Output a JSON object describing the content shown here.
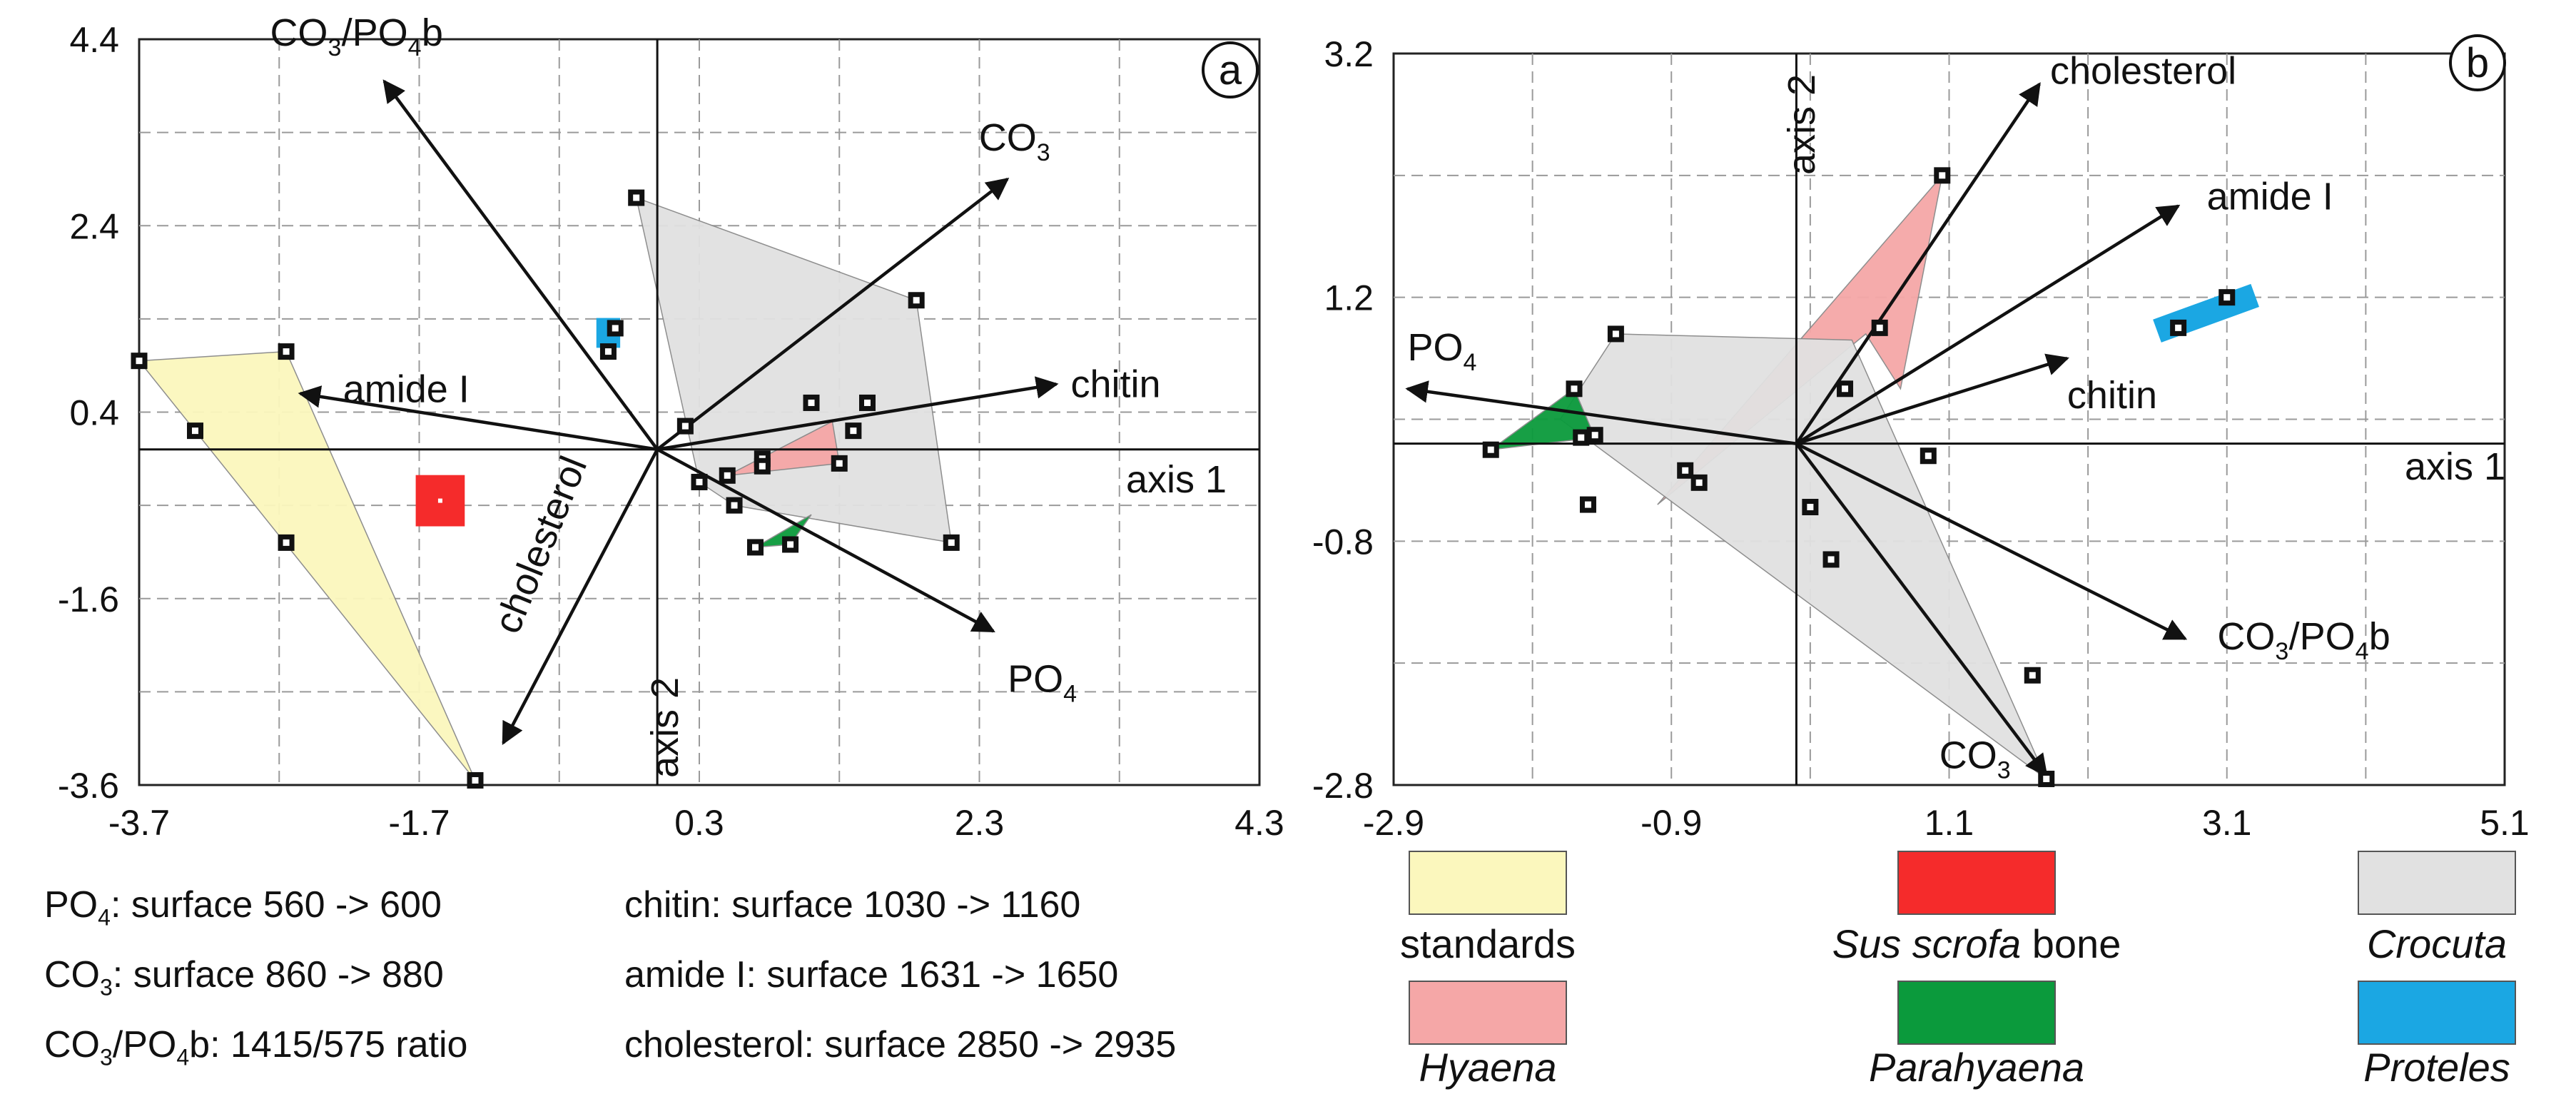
{
  "chart_data": [
    {
      "panel": "a",
      "type": "scatter",
      "axes": {
        "x_label": "axis 1",
        "y_label": "axis 2",
        "xlim": [
          -3.7,
          4.3
        ],
        "ylim": [
          -3.6,
          4.4
        ],
        "xticks": [
          -3.7,
          -1.7,
          0.3,
          2.3,
          4.3
        ],
        "yticks": [
          4.4,
          2.4,
          0.4,
          -1.6,
          -3.6
        ],
        "grid": true
      },
      "polygons": [
        {
          "group": "standards",
          "points": [
            [
              -3.7,
              0.95
            ],
            [
              -2.65,
              1.05
            ],
            [
              -1.3,
              -3.55
            ],
            [
              -3.3,
              0.2
            ]
          ]
        },
        {
          "group": "Crocuta",
          "points": [
            [
              -0.15,
              2.7
            ],
            [
              1.85,
              1.6
            ],
            [
              2.1,
              -1.0
            ],
            [
              0.55,
              -0.6
            ],
            [
              0.3,
              -0.35
            ]
          ]
        },
        {
          "group": "Hyaena",
          "points": [
            [
              0.5,
              -0.28
            ],
            [
              1.25,
              0.3
            ],
            [
              1.3,
              -0.15
            ]
          ]
        },
        {
          "group": "Parahyaena",
          "points": [
            [
              0.7,
              -1.05
            ],
            [
              1.1,
              -0.7
            ],
            [
              0.95,
              -1.02
            ]
          ]
        }
      ],
      "rects": [
        {
          "group": "Sus scrofa bone",
          "center": [
            -1.55,
            -0.55
          ],
          "w": 0.35,
          "h": 0.55
        },
        {
          "group": "Proteles",
          "center": [
            -0.35,
            1.25
          ],
          "w": 0.17,
          "h": 0.32
        }
      ],
      "points": [
        [
          -3.7,
          0.95
        ],
        [
          -2.65,
          1.05
        ],
        [
          -1.3,
          -3.55
        ],
        [
          -3.3,
          0.2
        ],
        [
          -2.65,
          -1.0
        ],
        [
          -0.15,
          2.7
        ],
        [
          1.85,
          1.6
        ],
        [
          2.1,
          -1.0
        ],
        [
          0.55,
          -0.6
        ],
        [
          0.3,
          -0.35
        ],
        [
          0.2,
          0.25
        ],
        [
          0.5,
          -0.28
        ],
        [
          0.75,
          -0.1
        ],
        [
          0.75,
          -0.18
        ],
        [
          1.1,
          0.5
        ],
        [
          1.5,
          0.5
        ],
        [
          1.4,
          0.2
        ],
        [
          1.3,
          -0.15
        ],
        [
          0.7,
          -1.05
        ],
        [
          0.95,
          -1.02
        ],
        [
          -0.35,
          1.05
        ],
        [
          -0.3,
          1.3
        ]
      ],
      "vectors": [
        {
          "name": "CO3/PO4b",
          "end": [
            -1.95,
            3.95
          ]
        },
        {
          "name": "CO3",
          "end": [
            2.5,
            2.9
          ]
        },
        {
          "name": "chitin",
          "end": [
            2.85,
            0.7
          ]
        },
        {
          "name": "amide I",
          "end": [
            -2.55,
            0.6
          ]
        },
        {
          "name": "PO4",
          "end": [
            2.4,
            -1.95
          ]
        },
        {
          "name": "cholesterol",
          "end": [
            -1.1,
            -3.15
          ]
        }
      ]
    },
    {
      "panel": "b",
      "type": "scatter",
      "axes": {
        "x_label": "axis 1",
        "y_label": "axis 2",
        "xlim": [
          -2.9,
          5.1
        ],
        "ylim": [
          -2.8,
          3.2
        ],
        "xticks": [
          -2.9,
          -0.9,
          1.1,
          3.1,
          5.1
        ],
        "yticks": [
          3.2,
          1.2,
          -0.8,
          -2.8
        ],
        "grid": true
      },
      "polygons": [
        {
          "group": "Hyaena",
          "points": [
            [
              -1.0,
              -0.5
            ],
            [
              1.05,
              2.2
            ],
            [
              0.75,
              0.45
            ],
            [
              0.5,
              0.9
            ]
          ]
        },
        {
          "group": "Crocuta",
          "points": [
            [
              -1.3,
              0.9
            ],
            [
              0.4,
              0.85
            ],
            [
              1.8,
              -2.75
            ],
            [
              -1.7,
              0.2
            ]
          ]
        },
        {
          "group": "Parahyaena",
          "points": [
            [
              -2.2,
              -0.05
            ],
            [
              -1.6,
              0.45
            ],
            [
              -1.45,
              0.05
            ]
          ]
        }
      ],
      "rects": [
        {
          "group": "Proteles",
          "center": [
            2.95,
            1.07
          ],
          "w": 0.75,
          "h": 0.2,
          "angle": -20
        }
      ],
      "points": [
        [
          -2.2,
          -0.05
        ],
        [
          -1.55,
          0.05
        ],
        [
          -1.45,
          0.07
        ],
        [
          -1.6,
          0.45
        ],
        [
          -1.3,
          0.9
        ],
        [
          -1.5,
          -0.5
        ],
        [
          -0.8,
          -0.22
        ],
        [
          -0.7,
          -0.32
        ],
        [
          0.1,
          -0.52
        ],
        [
          0.25,
          -0.95
        ],
        [
          0.35,
          0.45
        ],
        [
          0.6,
          0.95
        ],
        [
          1.05,
          2.2
        ],
        [
          0.95,
          -0.1
        ],
        [
          1.7,
          -1.9
        ],
        [
          1.8,
          -2.75
        ],
        [
          2.75,
          0.95
        ],
        [
          3.1,
          1.2
        ]
      ],
      "vectors": [
        {
          "name": "cholesterol",
          "end": [
            1.75,
            2.95
          ]
        },
        {
          "name": "amide I",
          "end": [
            2.75,
            1.95
          ]
        },
        {
          "name": "PO4",
          "end": [
            -2.8,
            0.45
          ]
        },
        {
          "name": "chitin",
          "end": [
            1.95,
            0.7
          ]
        },
        {
          "name": "CO3/PO4b",
          "end": [
            2.8,
            -1.6
          ]
        },
        {
          "name": "CO3",
          "end": [
            1.8,
            -2.72
          ]
        }
      ]
    }
  ],
  "colors": {
    "standards": "#fbf7bd",
    "Sus scrofa bone": "#f52b2b",
    "Crocuta": "#e1e1e1",
    "Hyaena": "#f5a7a7",
    "Parahyaena": "#0b9a3c",
    "Proteles": "#1ba7e3"
  },
  "legend": [
    {
      "group": "standards",
      "label": "standards",
      "italic": false
    },
    {
      "group": "Sus scrofa bone",
      "label": "Sus scrofa",
      "suffix": " bone",
      "italic": true
    },
    {
      "group": "Crocuta",
      "label": "Crocuta",
      "italic": true
    },
    {
      "group": "Hyaena",
      "label": "Hyaena",
      "italic": true
    },
    {
      "group": "Parahyaena",
      "label": "Parahyaena",
      "italic": true
    },
    {
      "group": "Proteles",
      "label": "Proteles",
      "italic": true
    }
  ],
  "notes": {
    "po4_prefix": "PO",
    "po4_sub": "4",
    "po4_text": ": surface 560 -> 600",
    "co3_prefix": "CO",
    "co3_sub": "3",
    "co3_text": ": surface 860 -> 880",
    "ratio_prefix1": "CO",
    "ratio_sub1": "3",
    "ratio_mid": "/PO",
    "ratio_sub2": "4",
    "ratio_text": "b: 1415/575 ratio",
    "chitin": "chitin: surface 1030 -> 1160",
    "amide": "amide I: surface 1631 -> 1650",
    "cholesterol": "cholesterol: surface 2850 -> 2935"
  }
}
